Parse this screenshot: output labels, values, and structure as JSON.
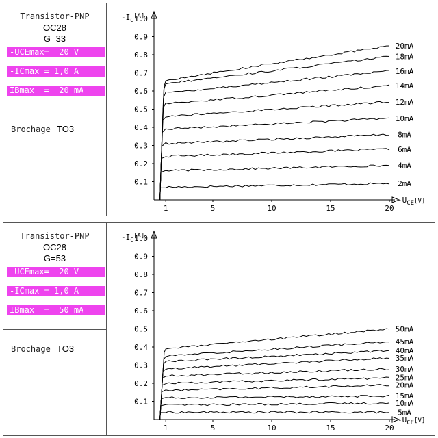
{
  "panels": [
    {
      "title": "Transistor-PNP",
      "model": "OC28",
      "gain": "G=33",
      "ratings": [
        "-UCEmax=  20 V",
        "-ICmax = 1,0 A",
        "IBmax  =  20 mA"
      ],
      "brochage_label": "Brochage",
      "brochage_value": "TO3"
    },
    {
      "title": "Transistor-PNP",
      "model": "OC28",
      "gain": "G=53",
      "ratings": [
        "-UCEmax=  20 V",
        "-ICmax = 1,0 A",
        "IBmax  =  50 mA"
      ],
      "brochage_label": "Brochage",
      "brochage_value": "TO3"
    }
  ],
  "chart_data": [
    {
      "type": "line",
      "ylabel_prefix": "-I",
      "ylabel_sub": "C",
      "ylabel_unit": "[A]",
      "xlabel_prefix": "-U",
      "xlabel_sub": "CE",
      "xlabel_unit": "[V]",
      "xlim": [
        0,
        20
      ],
      "ylim": [
        0,
        1.0
      ],
      "x_ticks": [
        1,
        5,
        10,
        15,
        20
      ],
      "y_ticks": [
        0.1,
        0.2,
        0.3,
        0.4,
        0.5,
        0.6,
        0.7,
        0.8,
        0.9,
        1.0
      ],
      "grid": false,
      "series": [
        {
          "name": "2mA",
          "values": [
            0.07,
            0.09
          ]
        },
        {
          "name": "4mA",
          "values": [
            0.16,
            0.19
          ]
        },
        {
          "name": "6mA",
          "values": [
            0.24,
            0.28
          ]
        },
        {
          "name": "8mA",
          "values": [
            0.31,
            0.36
          ]
        },
        {
          "name": "10mA",
          "values": [
            0.39,
            0.45
          ]
        },
        {
          "name": "12mA",
          "values": [
            0.46,
            0.54
          ]
        },
        {
          "name": "14mA",
          "values": [
            0.53,
            0.63
          ]
        },
        {
          "name": "16mA",
          "values": [
            0.59,
            0.71
          ]
        },
        {
          "name": "18mA",
          "values": [
            0.64,
            0.79
          ]
        },
        {
          "name": "20mA",
          "values": [
            0.66,
            0.85
          ]
        }
      ]
    },
    {
      "type": "line",
      "ylabel_prefix": "-I",
      "ylabel_sub": "C",
      "ylabel_unit": "[A]",
      "xlabel_prefix": "-U",
      "xlabel_sub": "CE",
      "xlabel_unit": "[V]",
      "xlim": [
        0,
        20
      ],
      "ylim": [
        0,
        1.0
      ],
      "x_ticks": [
        1,
        5,
        10,
        15,
        20
      ],
      "y_ticks": [
        0.1,
        0.2,
        0.3,
        0.4,
        0.5,
        0.6,
        0.7,
        0.8,
        0.9,
        1.0
      ],
      "grid": false,
      "series": [
        {
          "name": "5mA",
          "values": [
            0.04,
            0.04
          ]
        },
        {
          "name": "10mA",
          "values": [
            0.08,
            0.09
          ]
        },
        {
          "name": "15mA",
          "values": [
            0.12,
            0.13
          ]
        },
        {
          "name": "20mA",
          "values": [
            0.16,
            0.19
          ]
        },
        {
          "name": "25mA",
          "values": [
            0.2,
            0.23
          ]
        },
        {
          "name": "30mA",
          "values": [
            0.24,
            0.28
          ]
        },
        {
          "name": "35mA",
          "values": [
            0.28,
            0.34
          ]
        },
        {
          "name": "40mA",
          "values": [
            0.32,
            0.38
          ]
        },
        {
          "name": "45mA",
          "values": [
            0.35,
            0.43
          ]
        },
        {
          "name": "50mA",
          "values": [
            0.39,
            0.5
          ]
        }
      ]
    }
  ]
}
